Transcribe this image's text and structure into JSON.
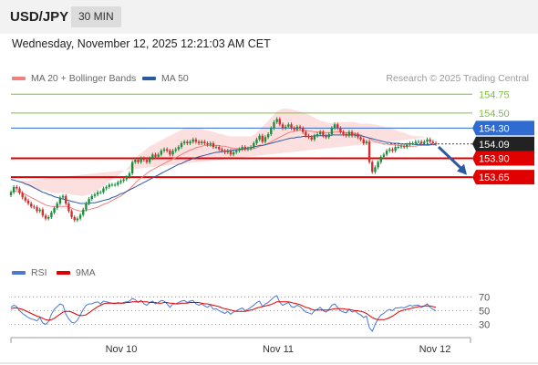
{
  "header": {
    "symbol": "USD/JPY",
    "timeframe": "30 MIN"
  },
  "datetime": "Wednesday, November 12, 2025 12:21:03 AM CET",
  "copyright": "Research © 2025 Trading Central",
  "legend": {
    "ma20": {
      "label": "MA 20 + Bollinger Bands",
      "color": "#f08080"
    },
    "ma50": {
      "label": "MA 50",
      "color": "#2c5aa0"
    }
  },
  "rsi_legend": {
    "rsi": {
      "label": "RSI",
      "color": "#4a78d4"
    },
    "ma9": {
      "label": "9MA",
      "color": "#e00000"
    }
  },
  "chart_data": [
    {
      "type": "candlestick",
      "ylim": [
        152.55,
        154.85
      ],
      "x_ticks": [
        "Nov 10",
        "Nov 11",
        "Nov 12"
      ],
      "levels": [
        {
          "value": 154.75,
          "label": "154.75",
          "color": "#7fbf3f",
          "kind": "resistance"
        },
        {
          "value": 154.5,
          "label": "154.50",
          "color": "#7fbf3f",
          "kind": "resistance"
        },
        {
          "value": 154.3,
          "label": "154.30",
          "color": "#2f6bd0",
          "kind": "pivot"
        },
        {
          "value": 154.09,
          "label": "154.09",
          "color": "#222222",
          "kind": "last-price"
        },
        {
          "value": 153.9,
          "label": "153.90",
          "color": "#e00000",
          "kind": "support"
        },
        {
          "value": 153.65,
          "label": "153.65",
          "color": "#e00000",
          "kind": "support"
        }
      ],
      "forecast_arrow": {
        "from": 154.05,
        "to": 153.68,
        "color": "#2c5aa0"
      },
      "close": [
        153.45,
        153.52,
        153.5,
        153.44,
        153.38,
        153.34,
        153.3,
        153.26,
        153.25,
        153.2,
        153.22,
        153.14,
        153.1,
        153.12,
        153.18,
        153.24,
        153.3,
        153.38,
        153.4,
        153.3,
        153.2,
        153.12,
        153.08,
        153.1,
        153.15,
        153.22,
        153.3,
        153.36,
        153.4,
        153.42,
        153.45,
        153.45,
        153.5,
        153.52,
        153.55,
        153.55,
        153.55,
        153.58,
        153.6,
        153.62,
        153.65,
        153.7,
        153.85,
        153.88,
        153.85,
        153.9,
        153.88,
        153.85,
        153.9,
        153.95,
        153.92,
        153.95,
        154.0,
        154.02,
        154.0,
        153.95,
        154.0,
        154.02,
        154.05,
        154.1,
        154.12,
        154.1,
        154.12,
        154.15,
        154.12,
        154.1,
        154.12,
        154.1,
        154.08,
        154.1,
        154.05,
        154.05,
        154.02,
        154.0,
        153.98,
        154.0,
        153.95,
        153.98,
        154.0,
        154.02,
        154.05,
        154.02,
        154.03,
        154.05,
        154.1,
        154.15,
        154.2,
        154.12,
        154.18,
        154.22,
        154.3,
        154.38,
        154.42,
        154.35,
        154.3,
        154.32,
        154.35,
        154.3,
        154.28,
        154.32,
        154.3,
        154.25,
        154.2,
        154.18,
        154.15,
        154.2,
        154.22,
        154.25,
        154.2,
        154.18,
        154.22,
        154.3,
        154.35,
        154.3,
        154.25,
        154.22,
        154.2,
        154.25,
        154.2,
        154.22,
        154.18,
        154.15,
        154.1,
        154.12,
        153.85,
        153.72,
        153.78,
        153.85,
        153.92,
        153.95,
        154.0,
        154.02,
        154.0,
        154.05,
        154.05,
        154.06,
        154.05,
        154.08,
        154.1,
        154.1,
        154.12,
        154.12,
        154.1,
        154.12,
        154.15,
        154.12,
        154.1,
        154.09
      ],
      "ma20": [
        153.45,
        153.46,
        153.46,
        153.45,
        153.44,
        153.42,
        153.4,
        153.38,
        153.36,
        153.34,
        153.32,
        153.3,
        153.28,
        153.27,
        153.26,
        153.26,
        153.26,
        153.26,
        153.26,
        153.26,
        153.25,
        153.24,
        153.22,
        153.21,
        153.2,
        153.2,
        153.21,
        153.22,
        153.23,
        153.24,
        153.25,
        153.27,
        153.29,
        153.3,
        153.32,
        153.34,
        153.36,
        153.38,
        153.4,
        153.43,
        153.46,
        153.49,
        153.53,
        153.57,
        153.61,
        153.64,
        153.67,
        153.7,
        153.73,
        153.75,
        153.77,
        153.79,
        153.81,
        153.83,
        153.85,
        153.87,
        153.89,
        153.91,
        153.93,
        153.95,
        153.97,
        153.99,
        154.01,
        154.02,
        154.04,
        154.05,
        154.06,
        154.07,
        154.07,
        154.07,
        154.07,
        154.07,
        154.07,
        154.06,
        154.06,
        154.05,
        154.04,
        154.03,
        154.03,
        154.03,
        154.02,
        154.02,
        154.02,
        154.02,
        154.03,
        154.04,
        154.06,
        154.07,
        154.08,
        154.1,
        154.12,
        154.14,
        154.16,
        154.18,
        154.2,
        154.22,
        154.24,
        154.25,
        154.26,
        154.27,
        154.27,
        154.27,
        154.27,
        154.26,
        154.26,
        154.25,
        154.25,
        154.25,
        154.25,
        154.24,
        154.24,
        154.24,
        154.25,
        154.25,
        154.25,
        154.25,
        154.24,
        154.24,
        154.23,
        154.23,
        154.22,
        154.21,
        154.19,
        154.18,
        154.16,
        154.14,
        154.12,
        154.11,
        154.1,
        154.09,
        154.09,
        154.08,
        154.08,
        154.08,
        154.07,
        154.07,
        154.06,
        154.06,
        154.06,
        154.06,
        154.06,
        154.07,
        154.07,
        154.07,
        154.07,
        154.07
      ],
      "ma50": [
        153.62,
        153.61,
        153.6,
        153.59,
        153.58,
        153.56,
        153.55,
        153.53,
        153.51,
        153.49,
        153.47,
        153.45,
        153.44,
        153.42,
        153.41,
        153.39,
        153.38,
        153.37,
        153.36,
        153.35,
        153.34,
        153.33,
        153.32,
        153.31,
        153.3,
        153.3,
        153.3,
        153.3,
        153.31,
        153.31,
        153.32,
        153.33,
        153.34,
        153.35,
        153.36,
        153.38,
        153.39,
        153.41,
        153.43,
        153.44,
        153.46,
        153.48,
        153.5,
        153.52,
        153.54,
        153.56,
        153.58,
        153.6,
        153.62,
        153.64,
        153.66,
        153.68,
        153.7,
        153.72,
        153.74,
        153.76,
        153.78,
        153.8,
        153.82,
        153.83,
        153.85,
        153.87,
        153.88,
        153.9,
        153.91,
        153.92,
        153.93,
        153.94,
        153.95,
        153.96,
        153.97,
        153.98,
        153.98,
        153.99,
        153.99,
        154.0,
        154.0,
        154.01,
        154.01,
        154.02,
        154.02,
        154.03,
        154.04,
        154.04,
        154.05,
        154.06,
        154.07,
        154.07,
        154.08,
        154.09,
        154.1,
        154.11,
        154.12,
        154.13,
        154.14,
        154.15,
        154.16,
        154.17,
        154.17,
        154.18,
        154.18,
        154.19,
        154.19,
        154.19,
        154.19,
        154.2,
        154.2,
        154.2,
        154.2,
        154.2,
        154.2,
        154.21,
        154.21,
        154.21,
        154.21,
        154.21,
        154.21,
        154.21,
        154.21,
        154.21,
        154.2,
        154.2,
        154.19,
        154.18,
        154.17,
        154.16,
        154.15,
        154.14,
        154.13,
        154.12,
        154.11,
        154.11,
        154.1,
        154.1,
        154.1,
        154.09,
        154.09,
        154.09,
        154.09,
        154.09,
        154.08,
        154.08,
        154.08,
        154.08,
        154.08,
        154.08,
        154.08,
        154.08
      ],
      "bb_upper": [
        153.58,
        153.59,
        153.59,
        153.58,
        153.57,
        153.55,
        153.53,
        153.51,
        153.5,
        153.49,
        153.48,
        153.48,
        153.47,
        153.46,
        153.45,
        153.44,
        153.44,
        153.44,
        153.44,
        153.44,
        153.43,
        153.42,
        153.41,
        153.41,
        153.4,
        153.4,
        153.41,
        153.42,
        153.44,
        153.45,
        153.47,
        153.5,
        153.53,
        153.56,
        153.59,
        153.62,
        153.64,
        153.67,
        153.7,
        153.73,
        153.76,
        153.8,
        153.85,
        153.9,
        153.94,
        153.97,
        154.0,
        154.03,
        154.06,
        154.08,
        154.1,
        154.12,
        154.14,
        154.16,
        154.18,
        154.2,
        154.22,
        154.24,
        154.26,
        154.28,
        154.3,
        154.31,
        154.31,
        154.31,
        154.31,
        154.3,
        154.29,
        154.28,
        154.27,
        154.26,
        154.25,
        154.24,
        154.23,
        154.22,
        154.21,
        154.2,
        154.19,
        154.19,
        154.19,
        154.19,
        154.19,
        154.19,
        154.19,
        154.19,
        154.21,
        154.24,
        154.28,
        154.32,
        154.36,
        154.4,
        154.44,
        154.48,
        154.52,
        154.54,
        154.56,
        154.56,
        154.56,
        154.55,
        154.54,
        154.53,
        154.52,
        154.51,
        154.5,
        154.48,
        154.46,
        154.44,
        154.42,
        154.4,
        154.39,
        154.38,
        154.37,
        154.37,
        154.37,
        154.37,
        154.38,
        154.38,
        154.38,
        154.38,
        154.38,
        154.38,
        154.37,
        154.36,
        154.36,
        154.36,
        154.36,
        154.35,
        154.35,
        154.34,
        154.33,
        154.32,
        154.31,
        154.3,
        154.29,
        154.28,
        154.26,
        154.25,
        154.24,
        154.22,
        154.21,
        154.2,
        154.2,
        154.19,
        154.19,
        154.18,
        154.18,
        154.18
      ],
      "bb_lower": [
        153.32,
        153.33,
        153.33,
        153.32,
        153.31,
        153.29,
        153.27,
        153.25,
        153.22,
        153.19,
        153.16,
        153.12,
        153.09,
        153.08,
        153.07,
        153.08,
        153.08,
        153.08,
        153.08,
        153.08,
        153.07,
        153.06,
        153.03,
        153.01,
        153.0,
        153.0,
        153.01,
        153.02,
        153.02,
        153.03,
        153.03,
        153.04,
        153.05,
        153.04,
        153.05,
        153.06,
        153.08,
        153.09,
        153.1,
        153.13,
        153.16,
        153.18,
        153.21,
        153.24,
        153.28,
        153.31,
        153.34,
        153.37,
        153.4,
        153.42,
        153.44,
        153.46,
        153.48,
        153.5,
        153.52,
        153.54,
        153.56,
        153.58,
        153.6,
        153.62,
        153.64,
        153.67,
        153.71,
        153.73,
        153.77,
        153.8,
        153.83,
        153.86,
        153.87,
        153.88,
        153.89,
        153.9,
        153.91,
        153.9,
        153.91,
        153.9,
        153.89,
        153.87,
        153.87,
        153.87,
        153.85,
        153.85,
        153.85,
        153.85,
        153.85,
        153.84,
        153.84,
        153.82,
        153.8,
        153.8,
        153.8,
        153.8,
        153.8,
        153.82,
        153.84,
        153.88,
        153.92,
        153.95,
        153.98,
        154.01,
        154.02,
        154.03,
        154.04,
        154.04,
        154.06,
        154.06,
        154.08,
        154.1,
        154.11,
        154.1,
        154.11,
        154.11,
        154.13,
        154.13,
        154.12,
        154.12,
        154.1,
        154.1,
        154.08,
        154.08,
        154.07,
        154.06,
        154.02,
        154.0,
        153.96,
        153.93,
        153.89,
        153.88,
        153.87,
        153.86,
        153.87,
        153.86,
        153.87,
        153.88,
        153.88,
        153.89,
        153.88,
        153.9,
        153.91,
        153.92,
        153.92,
        153.95,
        153.95,
        153.96,
        153.96,
        153.96
      ]
    },
    {
      "type": "line",
      "ylim": [
        20,
        80
      ],
      "y_ticks": [
        70,
        50,
        30
      ],
      "series": [
        {
          "name": "RSI",
          "color": "#4a78d4",
          "values": [
            55,
            58,
            56,
            50,
            46,
            43,
            40,
            38,
            37,
            35,
            40,
            32,
            30,
            34,
            45,
            52,
            56,
            60,
            58,
            45,
            38,
            33,
            32,
            36,
            44,
            52,
            58,
            60,
            60,
            62,
            63,
            60,
            64,
            63,
            62,
            61,
            60,
            62,
            61,
            62,
            63,
            64,
            68,
            66,
            62,
            65,
            60,
            58,
            62,
            64,
            60,
            62,
            65,
            64,
            60,
            55,
            60,
            60,
            62,
            64,
            65,
            62,
            64,
            65,
            60,
            58,
            60,
            57,
            55,
            58,
            52,
            53,
            50,
            48,
            46,
            49,
            45,
            48,
            50,
            52,
            54,
            50,
            52,
            55,
            58,
            62,
            64,
            56,
            60,
            62,
            66,
            70,
            72,
            62,
            58,
            60,
            62,
            56,
            55,
            58,
            56,
            52,
            48,
            47,
            45,
            50,
            52,
            55,
            50,
            48,
            52,
            58,
            60,
            55,
            50,
            48,
            47,
            52,
            48,
            50,
            46,
            44,
            40,
            42,
            25,
            20,
            30,
            38,
            44,
            46,
            50,
            52,
            50,
            54,
            54,
            55,
            54,
            56,
            58,
            57,
            58,
            58,
            55,
            57,
            60,
            55,
            52,
            50
          ]
        },
        {
          "name": "9MA",
          "color": "#e00000",
          "values": [
            53,
            54,
            54,
            53,
            52,
            50,
            48,
            46,
            44,
            42,
            41,
            39,
            37,
            36,
            37,
            39,
            42,
            45,
            48,
            49,
            49,
            48,
            46,
            44,
            43,
            43,
            44,
            47,
            50,
            53,
            56,
            58,
            60,
            61,
            61,
            61,
            61,
            61,
            61,
            61,
            62,
            62,
            63,
            63,
            63,
            64,
            63,
            63,
            62,
            62,
            62,
            61,
            61,
            62,
            62,
            61,
            61,
            60,
            60,
            61,
            61,
            61,
            62,
            62,
            62,
            62,
            61,
            60,
            60,
            59,
            58,
            57,
            56,
            54,
            53,
            52,
            51,
            50,
            49,
            49,
            49,
            49,
            50,
            51,
            52,
            54,
            55,
            56,
            57,
            58,
            59,
            61,
            63,
            63,
            63,
            63,
            63,
            62,
            61,
            60,
            59,
            57,
            55,
            54,
            52,
            51,
            51,
            51,
            51,
            51,
            51,
            52,
            53,
            53,
            53,
            53,
            52,
            52,
            51,
            50,
            50,
            49,
            48,
            46,
            43,
            40,
            38,
            37,
            37,
            37,
            38,
            40,
            42,
            45,
            48,
            50,
            51,
            52,
            53,
            54,
            55,
            56,
            56,
            57,
            57,
            57,
            56,
            55
          ]
        }
      ]
    }
  ]
}
